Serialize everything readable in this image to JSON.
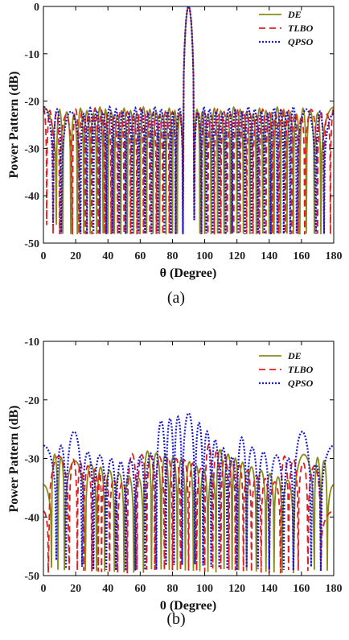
{
  "chart_data": [
    {
      "panel": "(a)",
      "type": "line",
      "xlabel": "θ (Degree)",
      "ylabel": "Power Pattern (dB)",
      "xlim": [
        0,
        180
      ],
      "ylim": [
        -50,
        0
      ],
      "xticks": [
        0,
        20,
        40,
        60,
        80,
        100,
        120,
        140,
        160,
        180
      ],
      "yticks": [
        0,
        -10,
        -20,
        -30,
        -40,
        -50
      ],
      "mainlobe": {
        "center": 90,
        "halfwidth": 2.2
      },
      "legend": {
        "position": "top-right"
      },
      "series": [
        {
          "name": "DE",
          "color": "#8b8b1a",
          "dash": "solid",
          "sidelobe_level": -21.3,
          "edge_max_angles": [
            0,
            180
          ],
          "nulls": [
            8,
            12,
            17,
            21,
            25,
            29,
            33,
            37,
            40,
            44,
            48,
            52,
            56,
            60,
            64,
            68,
            72,
            76,
            80,
            83,
            86.5,
            93.5,
            97,
            100,
            104,
            108,
            112,
            116,
            120,
            124,
            128,
            132,
            136,
            140,
            143,
            147,
            151,
            155,
            159,
            163,
            168,
            172
          ]
        },
        {
          "name": "TLBO",
          "color": "#e02020",
          "dash": "8,5",
          "sidelobe_level": -21.5,
          "edge_max_angles": [
            14,
            166
          ],
          "nulls": [
            2,
            6,
            10,
            18,
            22,
            26,
            30,
            34,
            38,
            42,
            46,
            50,
            54,
            58,
            62,
            66,
            70,
            74,
            78,
            82,
            86.5,
            93.5,
            98,
            102,
            106,
            110,
            114,
            118,
            122,
            126,
            130,
            134,
            138,
            142,
            146,
            150,
            154,
            158,
            162,
            170,
            174,
            178
          ]
        },
        {
          "name": "QPSO",
          "color": "#1a1acd",
          "dash": "2,2",
          "sidelobe_level": -21.2,
          "edge_max_angles": [
            18,
            162
          ],
          "nulls": [
            6,
            11,
            23,
            27,
            31,
            35,
            39,
            43,
            47,
            51,
            55,
            59,
            63,
            67,
            71,
            75,
            79,
            82,
            86.5,
            93.5,
            98,
            101,
            105,
            109,
            113,
            117,
            121,
            125,
            129,
            133,
            137,
            141,
            145,
            149,
            153,
            157,
            169,
            174
          ]
        }
      ]
    },
    {
      "panel": "(b)",
      "type": "line",
      "xlabel": "0 (Degree)",
      "ylabel": "Power Pattern (dB)",
      "xlim": [
        0,
        180
      ],
      "ylim": [
        -50,
        -10
      ],
      "xticks": [
        0,
        20,
        40,
        60,
        80,
        100,
        120,
        140,
        160,
        180
      ],
      "yticks": [
        -10,
        -20,
        -30,
        -40,
        -50
      ],
      "legend": {
        "position": "top-right"
      },
      "series": [
        {
          "name": "DE",
          "color": "#8b8b1a",
          "dash": "solid",
          "base_level": -31.5,
          "edge_level": -34.5,
          "center_level": -30,
          "nulls": [
            5,
            9,
            13,
            26,
            33,
            38,
            44,
            50,
            56,
            62,
            67,
            73,
            78,
            83,
            88,
            93,
            97,
            102,
            107,
            112,
            117,
            121,
            126,
            132,
            138,
            143,
            148,
            155,
            168,
            172,
            176
          ]
        },
        {
          "name": "TLBO",
          "color": "#e02020",
          "dash": "8,5",
          "base_level": -31.8,
          "edge_level": -39,
          "center_level": -29,
          "nulls": [
            3,
            16,
            21,
            25,
            30,
            34,
            36,
            41,
            46,
            52,
            58,
            64,
            69,
            75,
            80,
            85,
            90,
            95,
            100,
            105,
            110,
            115,
            119,
            124,
            129,
            135,
            140,
            147,
            152,
            158,
            164,
            172
          ]
        },
        {
          "name": "QPSO",
          "color": "#1a1acd",
          "dash": "2,2",
          "base_level": -30,
          "edge_level": -27.8,
          "center_level": -22.8,
          "peak_levels": [
            {
              "angle": 19,
              "level": -25.4
            },
            {
              "angle": 161,
              "level": -25.4
            }
          ],
          "nulls": [
            8,
            14,
            24,
            31,
            39,
            45,
            51,
            57,
            63,
            70,
            76,
            81,
            86,
            94,
            99,
            104,
            109,
            114,
            120,
            126,
            133,
            140,
            149,
            155,
            166,
            172
          ]
        }
      ]
    }
  ],
  "captions": [
    "(a)",
    "(b)"
  ]
}
